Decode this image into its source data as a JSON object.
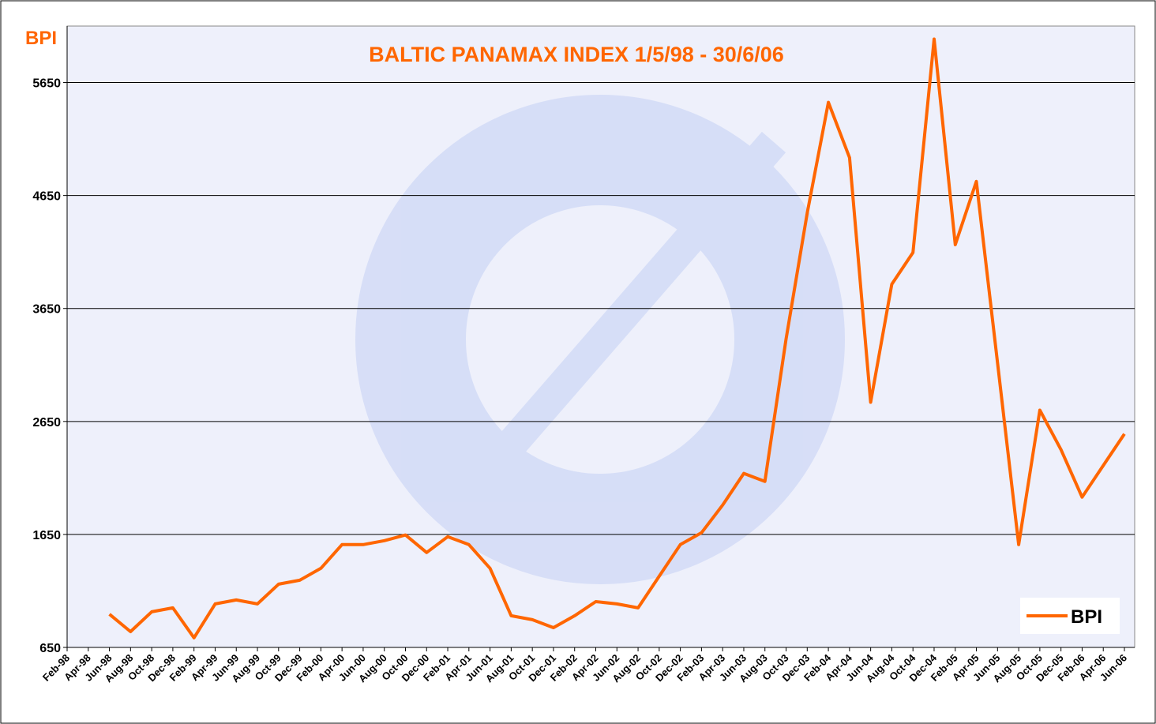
{
  "chart_data": {
    "type": "line",
    "title": "BALTIC PANAMAX INDEX 1/5/98 - 30/6/06",
    "y_label": "BPI",
    "categories": [
      "Feb-98",
      "Apr-98",
      "Jun-98",
      "Aug-98",
      "Oct-98",
      "Dec-98",
      "Feb-99",
      "Apr-99",
      "Jun-99",
      "Aug-99",
      "Oct-99",
      "Dec-99",
      "Feb-00",
      "Apr-00",
      "Jun-00",
      "Aug-00",
      "Oct-00",
      "Dec-00",
      "Feb-01",
      "Apr-01",
      "Jun-01",
      "Aug-01",
      "Oct-01",
      "Dec-01",
      "Feb-02",
      "Apr-02",
      "Jun-02",
      "Aug-02",
      "Oct-02",
      "Dec-02",
      "Feb-03",
      "Apr-03",
      "Jun-03",
      "Aug-03",
      "Oct-03",
      "Dec-03",
      "Feb-04",
      "Apr-04",
      "Jun-04",
      "Aug-04",
      "Oct-04",
      "Dec-04",
      "Feb-05",
      "Apr-05",
      "Jun-05",
      "Aug-05",
      "Oct-05",
      "Dec-05",
      "Feb-06",
      "Apr-06",
      "Jun-06"
    ],
    "series": [
      {
        "name": "BPI",
        "color": "#ff6600",
        "values": [
          null,
          null,
          944,
          790,
          965,
          1000,
          735,
          1035,
          1070,
          1035,
          1210,
          1245,
          1350,
          1560,
          1560,
          1595,
          1645,
          1490,
          1630,
          1560,
          1350,
          930,
          895,
          825,
          930,
          1055,
          1035,
          1000,
          1280,
          1560,
          1665,
          1910,
          2190,
          2120,
          3380,
          4495,
          5475,
          4985,
          2820,
          3865,
          4145,
          6035,
          4215,
          4775,
          3170,
          1560,
          2750,
          2400,
          1980,
          2260,
          2540
        ]
      }
    ],
    "ylim": [
      650,
      6150
    ],
    "yticks": [
      650,
      1650,
      2650,
      3650,
      4650,
      5650
    ],
    "grid": true,
    "legend": "lower right"
  }
}
